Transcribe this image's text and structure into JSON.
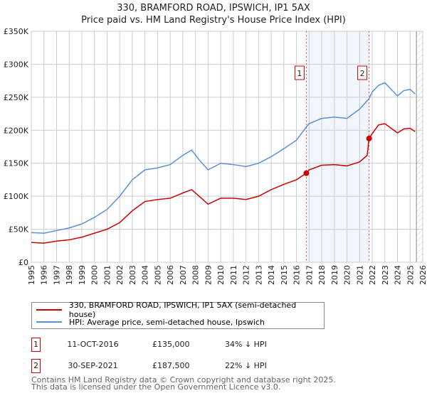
{
  "chart_data": {
    "type": "line",
    "title": "330, BRAMFORD ROAD, IPSWICH, IP1 5AX",
    "subtitle": "Price paid vs. HM Land Registry's House Price Index (HPI)",
    "xlim": [
      1995,
      2026
    ],
    "ylim": [
      0,
      350000
    ],
    "x_ticks": [
      "1995",
      "1996",
      "1997",
      "1998",
      "1999",
      "2000",
      "2001",
      "2002",
      "2003",
      "2004",
      "2005",
      "2006",
      "2007",
      "2008",
      "2009",
      "2010",
      "2011",
      "2012",
      "2013",
      "2014",
      "2015",
      "2016",
      "2017",
      "2018",
      "2019",
      "2020",
      "2021",
      "2022",
      "2023",
      "2024",
      "2025",
      "2026"
    ],
    "y_ticks": [
      {
        "v": 0,
        "label": "£0"
      },
      {
        "v": 50000,
        "label": "£50K"
      },
      {
        "v": 100000,
        "label": "£100K"
      },
      {
        "v": 150000,
        "label": "£150K"
      },
      {
        "v": 200000,
        "label": "£200K"
      },
      {
        "v": 250000,
        "label": "£250K"
      },
      {
        "v": 300000,
        "label": "£300K"
      },
      {
        "v": 350000,
        "label": "£350K"
      }
    ],
    "grid": true,
    "series": [
      {
        "name": "330, BRAMFORD ROAD, IPSWICH, IP1 5AX (semi-detached house)",
        "color": "#cc0000",
        "x": [
          1995,
          1996,
          1997,
          1998,
          1999,
          2000,
          2001,
          2002,
          2003,
          2004,
          2005,
          2006,
          2007,
          2007.7,
          2008.3,
          2009,
          2010,
          2011,
          2012,
          2013,
          2014,
          2015,
          2016,
          2016.78,
          2017,
          2018,
          2019,
          2020,
          2021,
          2021.6,
          2021.75,
          2022,
          2022.5,
          2023,
          2023.5,
          2024,
          2024.5,
          2025,
          2025.4
        ],
        "y": [
          30000,
          29000,
          32000,
          34000,
          38000,
          44000,
          50000,
          60000,
          78000,
          92000,
          95000,
          97000,
          105000,
          110000,
          100000,
          88000,
          97000,
          97000,
          95000,
          100000,
          110000,
          118000,
          125000,
          135000,
          140000,
          147000,
          148000,
          146000,
          152000,
          162000,
          187500,
          195000,
          208000,
          210000,
          203000,
          196000,
          202000,
          203000,
          198000
        ]
      },
      {
        "name": "HPI: Average price, semi-detached house, Ipswich",
        "color": "#5b8fd4",
        "x": [
          1995,
          1996,
          1997,
          1998,
          1999,
          2000,
          2001,
          2002,
          2003,
          2004,
          2005,
          2006,
          2007,
          2007.7,
          2008.3,
          2009,
          2010,
          2011,
          2012,
          2013,
          2014,
          2015,
          2016,
          2016.78,
          2017,
          2018,
          2019,
          2020,
          2021,
          2021.75,
          2022,
          2022.5,
          2023,
          2023.5,
          2024,
          2024.5,
          2025,
          2025.4
        ],
        "y": [
          45000,
          44000,
          48000,
          52000,
          58000,
          68000,
          80000,
          100000,
          125000,
          140000,
          143000,
          148000,
          162000,
          170000,
          155000,
          140000,
          150000,
          148000,
          145000,
          150000,
          160000,
          172000,
          185000,
          205000,
          210000,
          218000,
          220000,
          218000,
          232000,
          248000,
          258000,
          268000,
          272000,
          262000,
          252000,
          260000,
          262000,
          255000
        ]
      }
    ],
    "transactions": [
      {
        "num": "1",
        "date": "11-OCT-2016",
        "price": "£135,000",
        "hpi": "34% ↓ HPI",
        "x": 2016.78,
        "y": 135000
      },
      {
        "num": "2",
        "date": "30-SEP-2021",
        "price": "£187,500",
        "hpi": "22% ↓ HPI",
        "x": 2021.75,
        "y": 187500
      }
    ],
    "forecast_from": 2025.5
  },
  "footer": {
    "line1": "Contains HM Land Registry data © Crown copyright and database right 2025.",
    "line2": "This data is licensed under the Open Government Licence v3.0."
  }
}
